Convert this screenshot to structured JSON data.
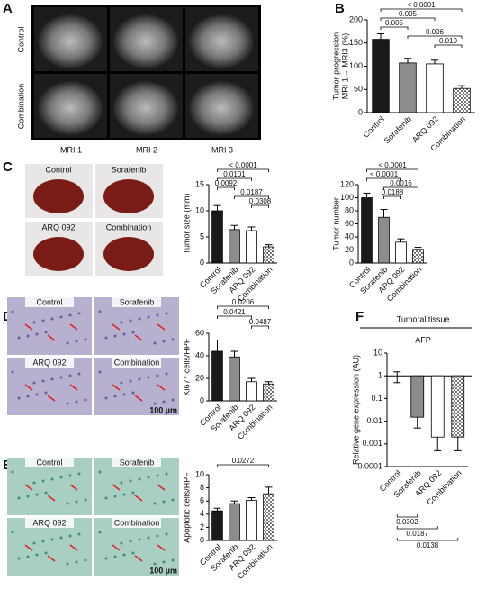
{
  "panels": [
    "A",
    "B",
    "C",
    "D",
    "E",
    "F"
  ],
  "figure_a": {
    "rows": [
      "Control",
      "Combination"
    ],
    "columns": [
      "MRI 1",
      "MRI 2",
      "MRI 3"
    ]
  },
  "figure_c": {
    "labels": [
      "Control",
      "Sorafenib",
      "ARQ 092",
      "Combination"
    ]
  },
  "figure_d": {
    "labels": [
      "Control",
      "Sorafenib",
      "ARQ 092",
      "Combination"
    ],
    "scale": "100 µm"
  },
  "figure_e": {
    "labels": [
      "Control",
      "Sorafenib",
      "ARQ 092",
      "Combination"
    ],
    "scale": "100 µm"
  },
  "chart_data": [
    {
      "type": "bar",
      "ylabel": [
        "Tumor progression",
        "MRI 1→ MRI3 (%)"
      ],
      "categories": [
        "Control",
        "Sorafenib",
        "ARQ 092",
        "Combination"
      ],
      "values": [
        158,
        107,
        105,
        52
      ],
      "errors": [
        12,
        10,
        8,
        6
      ],
      "colors": [
        "#1a1a1a",
        "#8c8c8c",
        "#ffffff",
        "#ffffff"
      ],
      "patterns": [
        "solid",
        "solid",
        "solid",
        "checker"
      ],
      "ylim": [
        0,
        200
      ],
      "yticks": [
        0,
        50,
        100,
        150,
        200
      ],
      "bracket_side": "top",
      "comparisons": [
        {
          "from": 0,
          "to": 3,
          "label": "< 0.0001"
        },
        {
          "from": 0,
          "to": 2,
          "label": "0.005"
        },
        {
          "from": 0,
          "to": 1,
          "label": "0.005"
        },
        {
          "from": 1,
          "to": 3,
          "label": "0.006"
        },
        {
          "from": 2,
          "to": 3,
          "label": "0.010"
        }
      ]
    },
    {
      "type": "bar",
      "ylabel": "Tumor size (mm)",
      "categories": [
        "Control",
        "Sorafenib",
        "ARQ 092",
        "Combination"
      ],
      "values": [
        10,
        6.4,
        6.2,
        3.1
      ],
      "errors": [
        1.0,
        0.8,
        0.7,
        0.4
      ],
      "colors": [
        "#1a1a1a",
        "#8c8c8c",
        "#ffffff",
        "#ffffff"
      ],
      "patterns": [
        "solid",
        "solid",
        "solid",
        "checker"
      ],
      "ylim": [
        0,
        15
      ],
      "yticks": [
        0,
        5,
        10,
        15
      ],
      "bracket_side": "top",
      "comparisons": [
        {
          "from": 0,
          "to": 3,
          "label": "< 0.0001"
        },
        {
          "from": 0,
          "to": 2,
          "label": "0.0101"
        },
        {
          "from": 0,
          "to": 1,
          "label": "0.0092"
        },
        {
          "from": 1,
          "to": 3,
          "label": "0.0187"
        },
        {
          "from": 2,
          "to": 3,
          "label": "0.0308"
        }
      ]
    },
    {
      "type": "bar",
      "ylabel": "Tumor number",
      "categories": [
        "Control",
        "Sorafenib",
        "ARQ 092",
        "Combination"
      ],
      "values": [
        100,
        70,
        32,
        21
      ],
      "errors": [
        7,
        12,
        5,
        3
      ],
      "colors": [
        "#1a1a1a",
        "#8c8c8c",
        "#ffffff",
        "#ffffff"
      ],
      "patterns": [
        "solid",
        "solid",
        "solid",
        "checker"
      ],
      "ylim": [
        0,
        120
      ],
      "yticks": [
        0,
        20,
        40,
        60,
        80,
        100,
        120
      ],
      "bracket_side": "top",
      "comparisons": [
        {
          "from": 0,
          "to": 3,
          "label": "< 0.0001"
        },
        {
          "from": 0,
          "to": 2,
          "label": "< 0.0001"
        },
        {
          "from": 1,
          "to": 3,
          "label": "0.0016"
        },
        {
          "from": 1,
          "to": 2,
          "label": "0.0188"
        }
      ]
    },
    {
      "type": "bar",
      "ylabel": "Ki67⁺ cells/HPF",
      "categories": [
        "Control",
        "Sorafenib",
        "ARQ 092",
        "Combination"
      ],
      "values": [
        44,
        39,
        17,
        15
      ],
      "errors": [
        10,
        5,
        3,
        2
      ],
      "colors": [
        "#1a1a1a",
        "#8c8c8c",
        "#ffffff",
        "#ffffff"
      ],
      "patterns": [
        "solid",
        "solid",
        "solid",
        "checker"
      ],
      "ylim": [
        0,
        60
      ],
      "yticks": [
        0,
        20,
        40,
        60
      ],
      "bracket_side": "top",
      "comparisons": [
        {
          "from": 0,
          "to": 3,
          "label": "0.0206"
        },
        {
          "from": 0,
          "to": 2,
          "label": "0.0421"
        },
        {
          "from": 2,
          "to": 3,
          "label": "0.0487"
        }
      ]
    },
    {
      "type": "bar",
      "ylabel": "Apoptotic cells/HPF",
      "categories": [
        "Control",
        "Sorafenib",
        "ARQ 092",
        "Combination"
      ],
      "values": [
        4.5,
        5.6,
        6.1,
        7.1
      ],
      "errors": [
        0.4,
        0.4,
        0.4,
        1.0
      ],
      "colors": [
        "#1a1a1a",
        "#8c8c8c",
        "#ffffff",
        "#ffffff"
      ],
      "patterns": [
        "solid",
        "solid",
        "solid",
        "checker"
      ],
      "ylim": [
        0,
        10
      ],
      "yticks": [
        0,
        2,
        4,
        6,
        8,
        10
      ],
      "bracket_side": "top",
      "comparisons": [
        {
          "from": 0,
          "to": 3,
          "label": "0.0272"
        }
      ]
    },
    {
      "type": "bar",
      "title": "Tumoral tissue",
      "subtitle": "AFP",
      "ylabel": "Relative gene expression (AU)",
      "categories": [
        "Control",
        "Sorafenib",
        "ARQ 092",
        "Combination"
      ],
      "values": [
        1,
        0.015,
        0.002,
        0.002
      ],
      "errors": [
        0.5,
        0.01,
        0.0015,
        0.0015
      ],
      "colors": [
        "#1a1a1a",
        "#8c8c8c",
        "#ffffff",
        "#ffffff"
      ],
      "patterns": [
        "solid",
        "solid",
        "solid",
        "checker"
      ],
      "log_scale": true,
      "baseline": 1,
      "ylim": [
        0.0001,
        10
      ],
      "yticks": [
        10,
        1,
        0.1,
        0.01,
        0.001,
        0.0001
      ],
      "bracket_side": "bottom",
      "comparisons": [
        {
          "from": 0,
          "to": 1,
          "label": "0.0302"
        },
        {
          "from": 0,
          "to": 2,
          "label": "0.0187"
        },
        {
          "from": 0,
          "to": 3,
          "label": "0.0138"
        }
      ]
    }
  ]
}
